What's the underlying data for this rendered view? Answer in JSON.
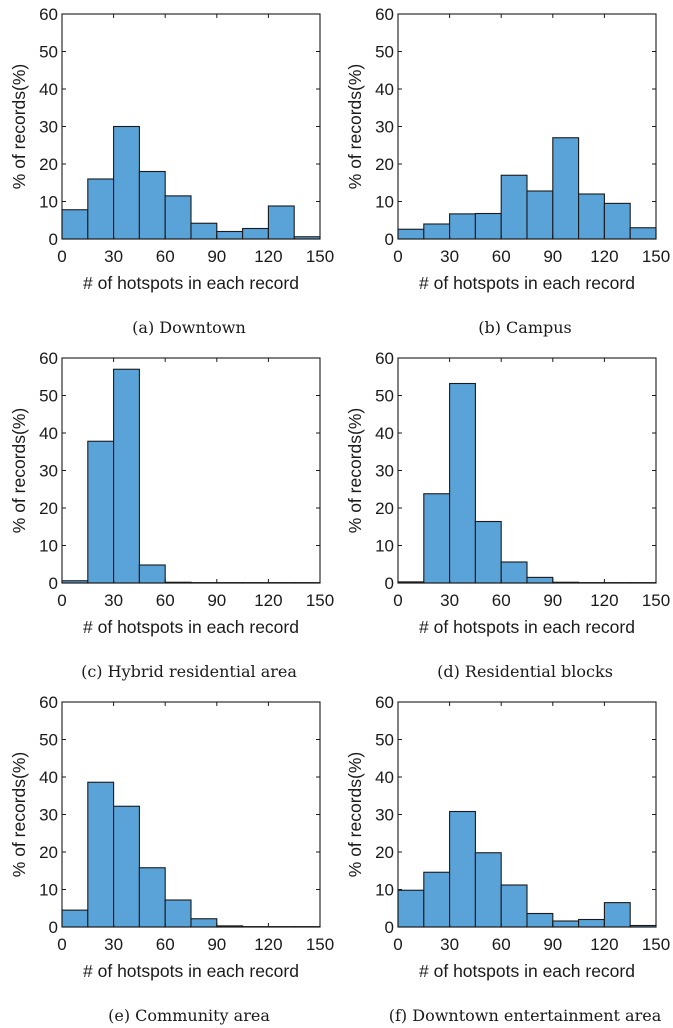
{
  "figure": {
    "bar_color": "#5aa3d8",
    "bar_edge_color": "#1a1a1a"
  },
  "chart_data": [
    {
      "type": "bar",
      "caption": "(a) Downtown",
      "xlabel": "# of hotspots in each record",
      "ylabel": "% of records(%)",
      "xlim": [
        0,
        150
      ],
      "ylim": [
        0,
        60
      ],
      "xticks": [
        0,
        30,
        60,
        90,
        120,
        150
      ],
      "yticks": [
        0,
        10,
        20,
        30,
        40,
        50,
        60
      ],
      "bin_width": 15,
      "values": [
        7.8,
        16,
        30,
        18,
        11.5,
        4.2,
        2,
        2.8,
        8.8,
        0.6
      ]
    },
    {
      "type": "bar",
      "caption": "(b) Campus",
      "xlabel": "# of hotspots in each record",
      "ylabel": "% of records(%)",
      "xlim": [
        0,
        150
      ],
      "ylim": [
        0,
        60
      ],
      "xticks": [
        0,
        30,
        60,
        90,
        120,
        150
      ],
      "yticks": [
        0,
        10,
        20,
        30,
        40,
        50,
        60
      ],
      "bin_width": 15,
      "values": [
        2.6,
        4,
        6.7,
        6.8,
        17,
        12.8,
        27,
        12,
        9.5,
        3
      ]
    },
    {
      "type": "bar",
      "caption": "(c) Hybrid residential area",
      "xlabel": "# of hotspots in each record",
      "ylabel": "% of records(%)",
      "xlim": [
        0,
        150
      ],
      "ylim": [
        0,
        60
      ],
      "xticks": [
        0,
        30,
        60,
        90,
        120,
        150
      ],
      "yticks": [
        0,
        10,
        20,
        30,
        40,
        50,
        60
      ],
      "bin_width": 15,
      "values": [
        0.6,
        37.8,
        57,
        4.8,
        0.2,
        0.1,
        0.1,
        0.1,
        0.1,
        0.1
      ]
    },
    {
      "type": "bar",
      "caption": "(d) Residential blocks",
      "xlabel": "# of hotspots in each record",
      "ylabel": "% of records(%)",
      "xlim": [
        0,
        150
      ],
      "ylim": [
        0,
        60
      ],
      "xticks": [
        0,
        30,
        60,
        90,
        120,
        150
      ],
      "yticks": [
        0,
        10,
        20,
        30,
        40,
        50,
        60
      ],
      "bin_width": 15,
      "values": [
        0.3,
        23.8,
        53.2,
        16.4,
        5.6,
        1.5,
        0.2,
        0.1,
        0.1,
        0.1
      ]
    },
    {
      "type": "bar",
      "caption": "(e) Community area",
      "xlabel": "# of hotspots in each record",
      "ylabel": "% of records(%)",
      "xlim": [
        0,
        150
      ],
      "ylim": [
        0,
        60
      ],
      "xticks": [
        0,
        30,
        60,
        90,
        120,
        150
      ],
      "yticks": [
        0,
        10,
        20,
        30,
        40,
        50,
        60
      ],
      "bin_width": 15,
      "values": [
        4.5,
        38.6,
        32.2,
        15.8,
        7.2,
        2.2,
        0.3,
        0.1,
        0.1,
        0.1
      ]
    },
    {
      "type": "bar",
      "caption": "(f) Downtown entertainment area",
      "xlabel": "# of hotspots in each record",
      "ylabel": "% of records(%)",
      "xlim": [
        0,
        150
      ],
      "ylim": [
        0,
        60
      ],
      "xticks": [
        0,
        30,
        60,
        90,
        120,
        150
      ],
      "yticks": [
        0,
        10,
        20,
        30,
        40,
        50,
        60
      ],
      "bin_width": 15,
      "values": [
        9.8,
        14.6,
        30.8,
        19.8,
        11.2,
        3.6,
        1.6,
        2,
        6.5,
        0.4
      ]
    }
  ]
}
